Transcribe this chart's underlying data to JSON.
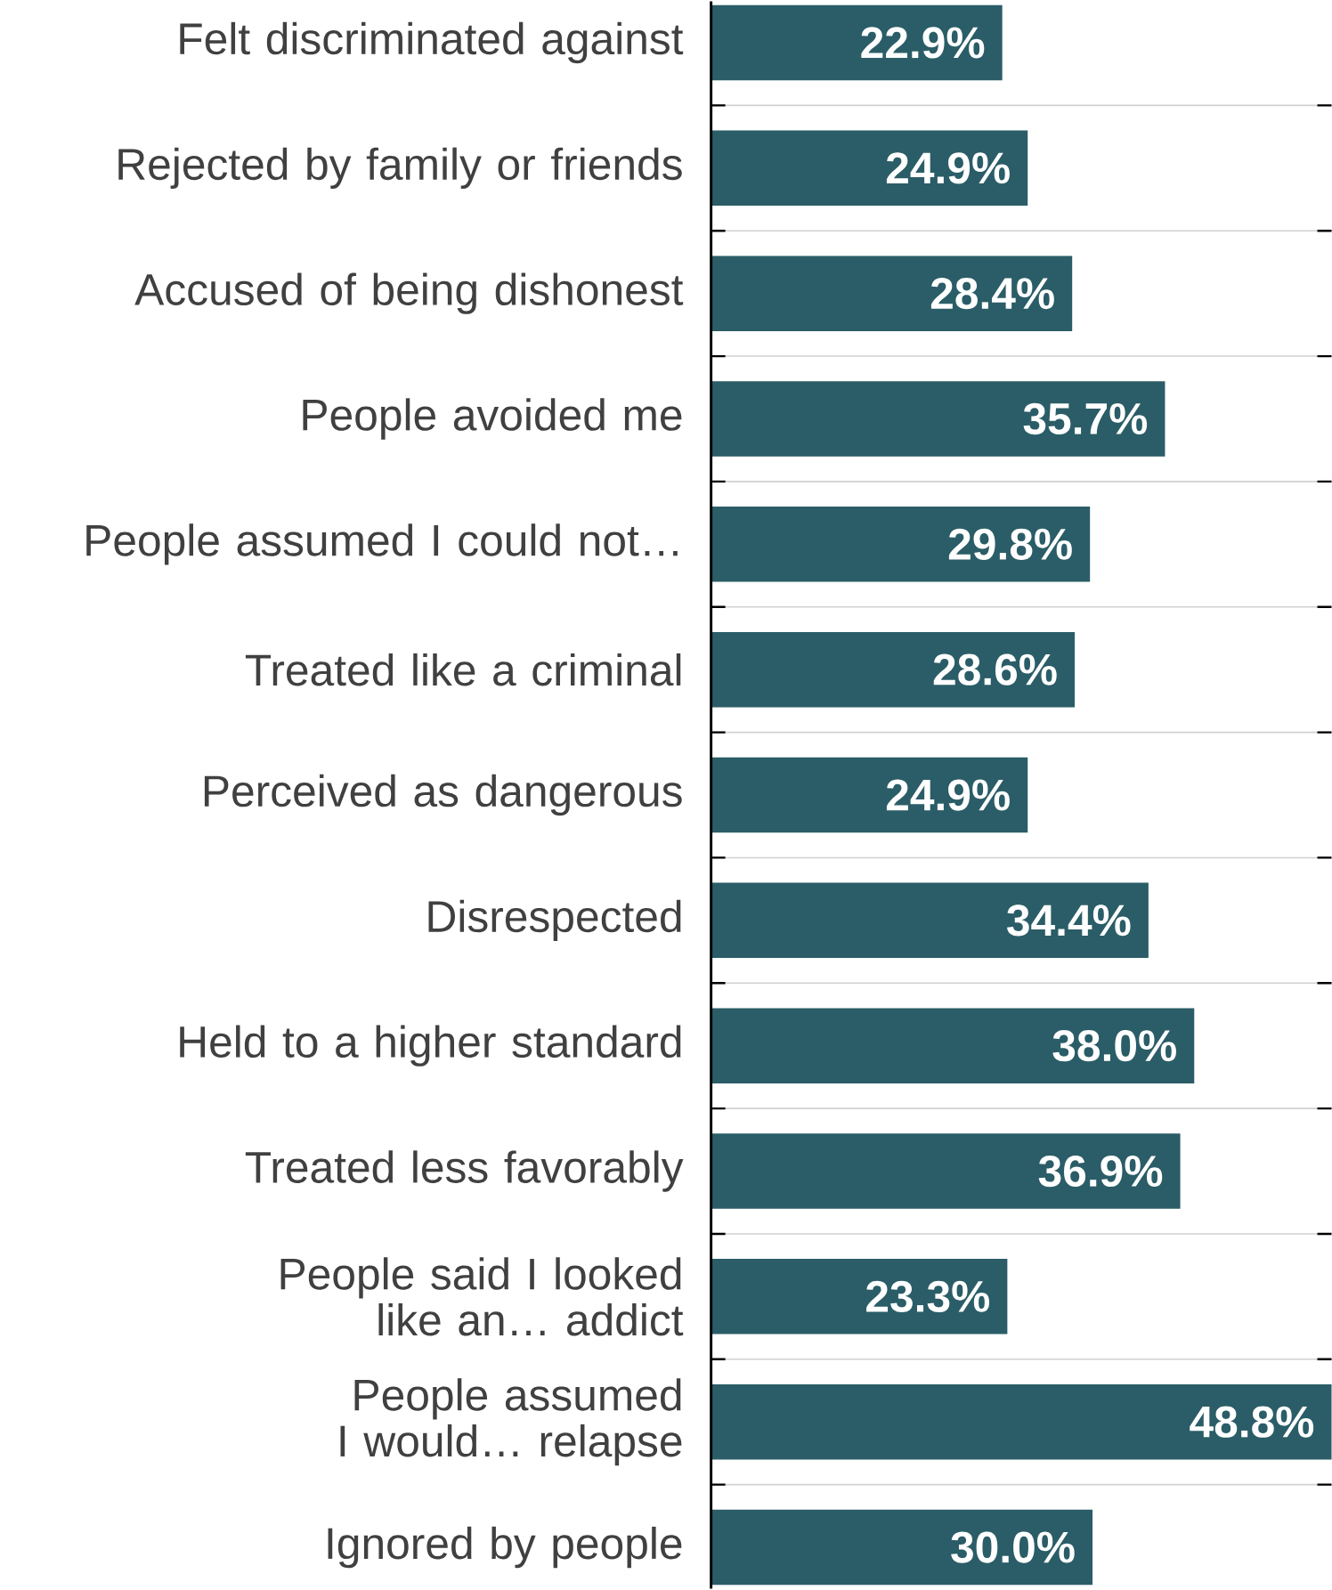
{
  "chart_data": {
    "type": "bar",
    "orientation": "horizontal",
    "color": "#2a5d67",
    "grid": "y",
    "categories": [
      "Felt discriminated against",
      "Rejected by family or friends",
      "Accused of being dishonest",
      "People avoided me",
      "People assumed I could not…",
      "Treated like a criminal",
      "Perceived as dangerous",
      "Disrespected",
      "Held to a higher standard",
      "Treated less favorably",
      "People said I  looked like an… addict",
      "People assumed I would… relapse",
      "Ignored by people"
    ],
    "values": [
      22.9,
      24.9,
      28.4,
      35.7,
      29.8,
      28.6,
      24.9,
      34.4,
      38.0,
      36.9,
      23.3,
      48.8,
      30.0
    ],
    "value_labels": [
      "22.9%",
      "24.9%",
      "28.4%",
      "35.7%",
      "29.8%",
      "28.6%",
      "24.9%",
      "34.4%",
      "38.0%",
      "36.9%",
      "23.3%",
      "48.8%",
      "30.0%"
    ]
  }
}
